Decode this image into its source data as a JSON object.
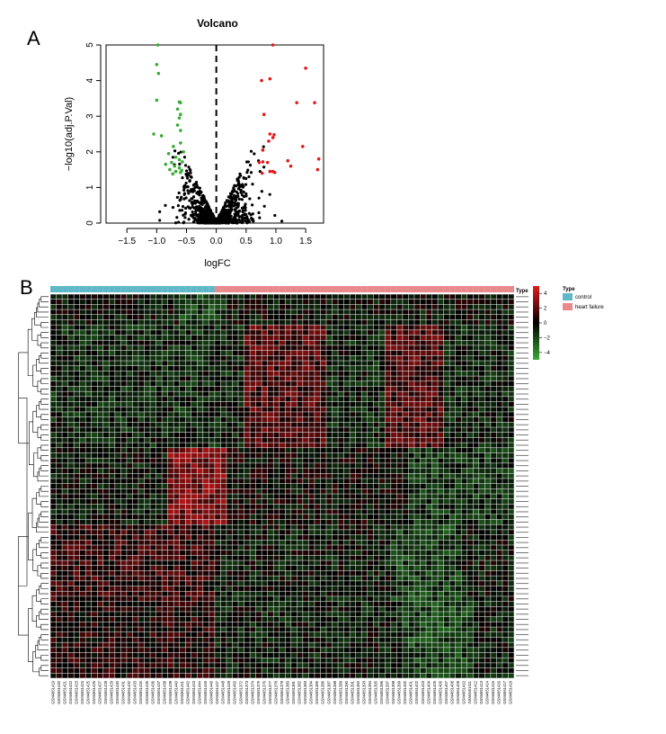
{
  "panel_labels": {
    "a": "A",
    "b": "B"
  },
  "chart_data": [
    {
      "type": "scatter",
      "title": "Volcano",
      "xlabel": "logFC",
      "ylabel": "−log10(adj.P.Val)",
      "xlim": [
        -1.85,
        1.8
      ],
      "ylim": [
        0,
        5
      ],
      "xticks": [
        -1.5,
        -1.0,
        -0.5,
        0.0,
        0.5,
        1.0,
        1.5
      ],
      "xtick_labels": [
        "−1.5",
        "−1.0",
        "−0.5",
        "0.0",
        "0.5",
        "1.0",
        "1.5"
      ],
      "yticks": [
        0,
        1,
        2,
        3,
        4,
        5
      ],
      "ytick_labels": [
        "0",
        "1",
        "2",
        "3",
        "4",
        "5"
      ],
      "threshold_line_x": 0,
      "colors": {
        "down": "#3aaa35",
        "up": "#e31a1c",
        "nonsig": "#000000"
      },
      "down_points": [
        [
          -0.98,
          5.0
        ],
        [
          -1.0,
          4.45
        ],
        [
          -0.97,
          4.2
        ],
        [
          -1.0,
          3.45
        ],
        [
          -0.62,
          3.4
        ],
        [
          -0.6,
          3.38
        ],
        [
          -0.65,
          3.2
        ],
        [
          -0.6,
          3.05
        ],
        [
          -0.62,
          2.95
        ],
        [
          -0.65,
          2.75
        ],
        [
          -0.6,
          2.6
        ],
        [
          -1.05,
          2.5
        ],
        [
          -0.92,
          2.45
        ],
        [
          -0.6,
          2.25
        ],
        [
          -0.72,
          2.15
        ],
        [
          -0.55,
          2.0
        ],
        [
          -0.8,
          1.95
        ],
        [
          -0.68,
          1.85
        ],
        [
          -0.62,
          1.78
        ],
        [
          -0.57,
          1.72
        ],
        [
          -0.75,
          1.7
        ],
        [
          -0.85,
          1.65
        ],
        [
          -0.7,
          1.6
        ],
        [
          -0.62,
          1.55
        ],
        [
          -0.78,
          1.5
        ],
        [
          -0.58,
          1.48
        ],
        [
          -0.68,
          1.45
        ],
        [
          -0.6,
          1.42
        ],
        [
          -0.73,
          1.38
        ]
      ],
      "up_points": [
        [
          0.95,
          5.0
        ],
        [
          1.5,
          4.35
        ],
        [
          0.9,
          4.05
        ],
        [
          0.76,
          4.0
        ],
        [
          1.65,
          3.38
        ],
        [
          1.35,
          3.38
        ],
        [
          0.8,
          3.05
        ],
        [
          0.9,
          2.5
        ],
        [
          0.97,
          2.48
        ],
        [
          0.95,
          2.4
        ],
        [
          0.88,
          2.3
        ],
        [
          1.45,
          2.15
        ],
        [
          0.78,
          2.05
        ],
        [
          1.72,
          1.8
        ],
        [
          1.2,
          1.75
        ],
        [
          0.78,
          1.72
        ],
        [
          0.72,
          1.7
        ],
        [
          0.86,
          1.7
        ],
        [
          1.25,
          1.6
        ],
        [
          1.7,
          1.5
        ],
        [
          0.95,
          1.45
        ],
        [
          0.9,
          1.45
        ],
        [
          0.98,
          1.42
        ],
        [
          0.77,
          1.4
        ]
      ]
    },
    {
      "type": "heatmap",
      "legend_title": "Type",
      "type_legend": [
        {
          "label": "control",
          "color": "#5fb8c8"
        },
        {
          "label": "heart failure",
          "color": "#e8898b"
        }
      ],
      "type_header_label": "Type",
      "colorbar": {
        "ticks": [
          4,
          2,
          0,
          -2,
          -4
        ],
        "tick_labels": [
          "4",
          "2",
          "0",
          "−2",
          "−4"
        ],
        "high_color": "#e31a1c",
        "mid_color": "#000000",
        "low_color": "#3aaa35"
      },
      "n_rows": 75,
      "control_count": 28,
      "samples": [
        "GSM4651419",
        "GSM4651420",
        "GSM4651421",
        "GSM4651422",
        "GSM4651423",
        "GSM4651424",
        "GSM4651425",
        "GSM4651426",
        "GSM4651427",
        "GSM4651428",
        "GSM4651429",
        "GSM4651430",
        "GSM4651431",
        "GSM4651432",
        "GSM4651433",
        "GSM4651434",
        "GSM4651435",
        "GSM4651436",
        "GSM4651437",
        "GSM4651438",
        "GSM4651439",
        "GSM4651440",
        "GSM4651441",
        "GSM4651442",
        "GSM4651443",
        "GSM4651444",
        "GSM4651445",
        "GSM4651446",
        "GSM4651447",
        "GSM4651448",
        "GSM4651449",
        "GSM4651450",
        "GSM4651372",
        "GSM4651373",
        "GSM4651374",
        "GSM4651375",
        "GSM4651376",
        "GSM4651377",
        "GSM4651378",
        "GSM4651379",
        "GSM4651380",
        "GSM4651381",
        "GSM4651382",
        "GSM4651383",
        "GSM4651384",
        "GSM4651385",
        "GSM4651386",
        "GSM4651387",
        "GSM4651388",
        "GSM4651389",
        "GSM4651390",
        "GSM4651391",
        "GSM4651392",
        "GSM4651393",
        "GSM4651394",
        "GSM4651395",
        "GSM4651396",
        "GSM4651397",
        "GSM4651398",
        "GSM4651399",
        "GSM4651400",
        "GSM4651401",
        "GSM4651402",
        "GSM4651403",
        "GSM4651404",
        "GSM4651405",
        "GSM4651406",
        "GSM4651407",
        "GSM4651408",
        "GSM4651409",
        "GSM4651410",
        "GSM4651411",
        "GSM4651412",
        "GSM4651413",
        "GSM4651414",
        "GSM4651415",
        "GSM4651416",
        "GSM4651417",
        "GSM4651418"
      ]
    }
  ]
}
